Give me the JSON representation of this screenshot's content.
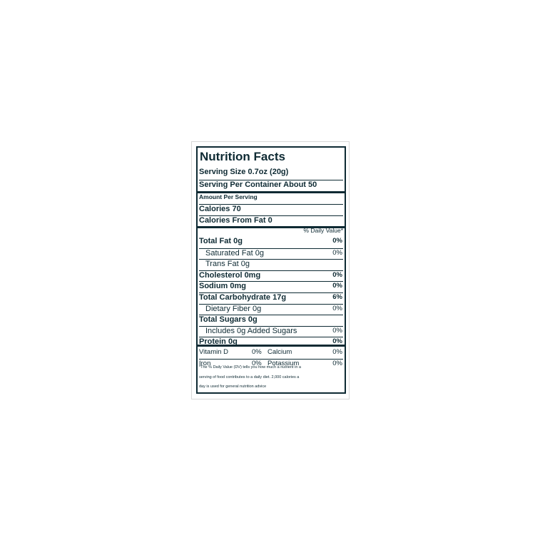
{
  "title": "Nutrition Facts",
  "serving_size": "Serving Size 0.7oz (20g)",
  "servings_per_container": "Serving Per Container About 50",
  "amount_per_serving": "Amount Per Serving",
  "calories": "Calories 70",
  "calories_from_fat": "Calories From Fat 0",
  "dv_header": "% Daily Value*",
  "nutrients": [
    {
      "label": "Total Fat 0g",
      "dv": "0%",
      "indent": false
    },
    {
      "label": "Saturated Fat 0g",
      "dv": "0%",
      "indent": true
    },
    {
      "label": "Trans Fat 0g",
      "dv": "",
      "indent": true
    },
    {
      "label": "Cholesterol 0mg",
      "dv": "0%",
      "indent": false
    },
    {
      "label": "Sodium 0mg",
      "dv": "0%",
      "indent": false
    },
    {
      "label": "Total Carbohydrate 17g",
      "dv": "6%",
      "indent": false
    },
    {
      "label": "Dietary Fiber 0g",
      "dv": "0%",
      "indent": true
    },
    {
      "label": "Total Sugars 0g",
      "dv": "",
      "indent": false
    },
    {
      "label": "Includes 0g Added Sugars",
      "dv": "0%",
      "indent": true
    },
    {
      "label": "Protein 0g",
      "dv": "0%",
      "indent": false
    }
  ],
  "vitamins": [
    {
      "left": "Vitamin D",
      "left_dv": "0%",
      "right": "Calcium",
      "right_dv": "0%"
    },
    {
      "left": "Iron",
      "left_dv": "0%",
      "right": "Potassium",
      "right_dv": "0%"
    }
  ],
  "footnote": [
    "*The % Daily Value (DV) tells you how much a nutrient in a",
    "serving of food contributes to a daily diet. 2,000 calories a",
    "day is used for general nutrition advice"
  ]
}
